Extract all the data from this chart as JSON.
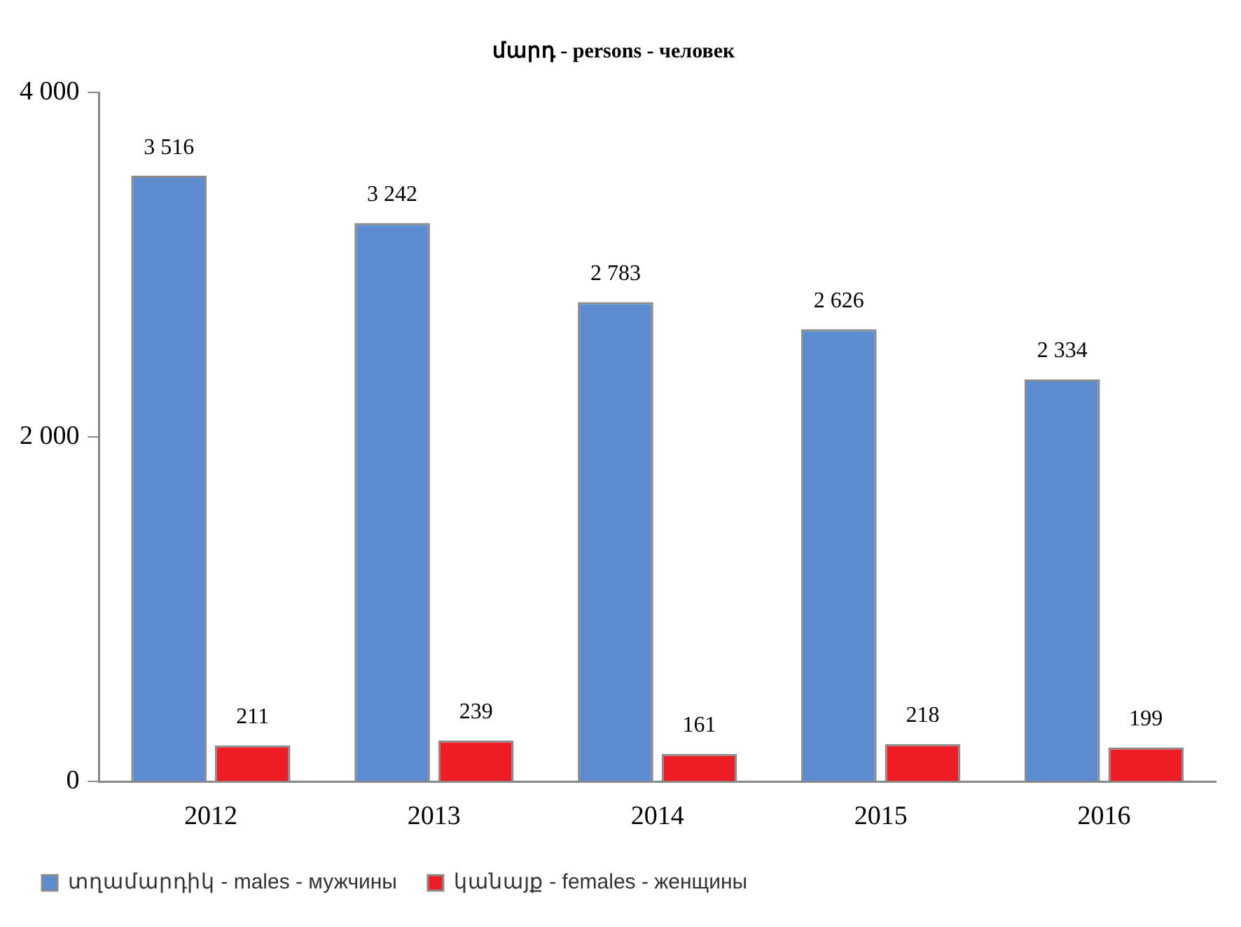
{
  "chart_data": {
    "type": "bar",
    "title": "մարդ - persons - человек",
    "categories": [
      "2012",
      "2013",
      "2014",
      "2015",
      "2016"
    ],
    "series": [
      {
        "name": "տղամարդիկ - males - мужчины",
        "color": "#5b8bd0",
        "values": [
          3516,
          3242,
          2783,
          2626,
          2334
        ],
        "value_labels": [
          "3 516",
          "3 242",
          "2 783",
          "2 626",
          "2 334"
        ]
      },
      {
        "name": "կանայք - females - женщины",
        "color": "#ee1c25",
        "values": [
          211,
          239,
          161,
          218,
          199
        ],
        "value_labels": [
          "211",
          "239",
          "161",
          "218",
          "199"
        ]
      }
    ],
    "ylim": [
      0,
      4000
    ],
    "yticks": [
      0,
      {
        "value": 2000,
        "label": "2 000"
      },
      {
        "value": 4000,
        "label": "4 000"
      }
    ],
    "grid": false,
    "legend": "bottom left"
  }
}
